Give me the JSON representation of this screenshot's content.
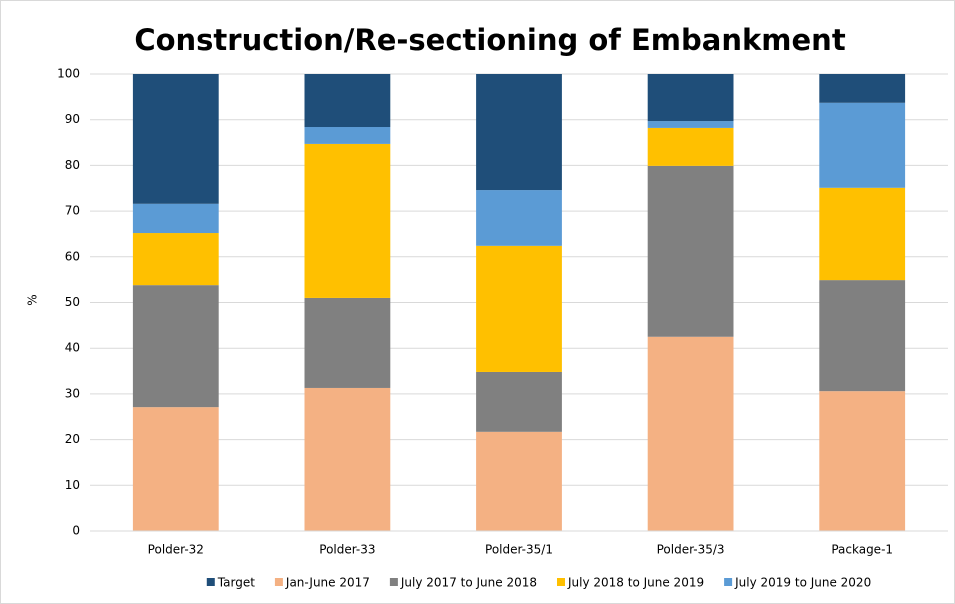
{
  "chart_data": {
    "type": "stacked_bar",
    "title": "Construction/Re-sectioning of Embankment",
    "y_label": "%",
    "categories": [
      "Polder-32",
      "Polder-33",
      "Polder-35/1",
      "Polder-35/3",
      "Package-1"
    ],
    "series": [
      {
        "name": "Target",
        "color": "#1f4e79",
        "values": [
          28.4,
          11.6,
          25.4,
          10.3,
          6.3
        ]
      },
      {
        "name": "Jan-June 2017",
        "color": "#f4b183",
        "values": [
          27.1,
          31.3,
          21.7,
          42.5,
          30.6
        ]
      },
      {
        "name": "July 2017 to June 2018",
        "color": "#808080",
        "values": [
          26.7,
          19.7,
          13.1,
          37.4,
          24.3
        ]
      },
      {
        "name": "July 2018 to June 2019",
        "color": "#ffc000",
        "values": [
          11.4,
          33.7,
          27.6,
          8.3,
          20.2
        ]
      },
      {
        "name": "July 2019 to June 2020",
        "color": "#5b9bd5",
        "values": [
          6.4,
          3.7,
          12.2,
          1.5,
          18.6
        ]
      }
    ],
    "ylim": [
      0,
      100
    ],
    "yticks": [
      0,
      10,
      20,
      30,
      40,
      50,
      60,
      70,
      80,
      90,
      100
    ],
    "grid": true,
    "legend": "bottom"
  }
}
